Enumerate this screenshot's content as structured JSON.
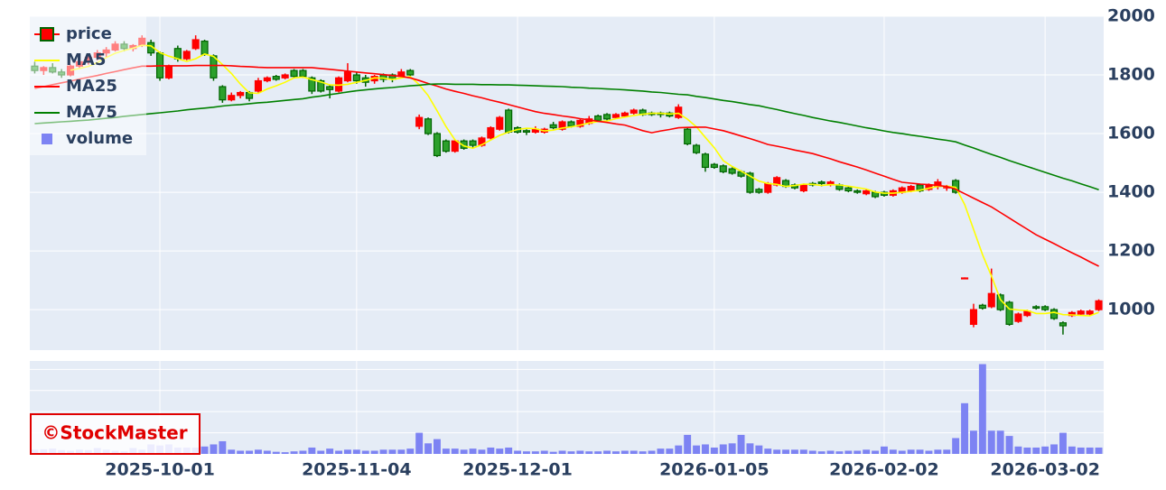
{
  "chart_data": {
    "type": "candlestick",
    "categories": [
      "2025-09-09",
      "2025-09-10",
      "2025-09-11",
      "2025-09-12",
      "2025-09-16",
      "2025-09-17",
      "2025-09-18",
      "2025-09-19",
      "2025-09-22",
      "2025-09-24",
      "2025-09-25",
      "2025-09-26",
      "2025-09-29",
      "2025-09-30",
      "2025-10-01",
      "2025-10-02",
      "2025-10-03",
      "2025-10-06",
      "2025-10-07",
      "2025-10-08",
      "2025-10-09",
      "2025-10-10",
      "2025-10-14",
      "2025-10-15",
      "2025-10-16",
      "2025-10-17",
      "2025-10-20",
      "2025-10-21",
      "2025-10-22",
      "2025-10-23",
      "2025-10-24",
      "2025-10-27",
      "2025-10-28",
      "2025-10-29",
      "2025-10-30",
      "2025-10-31",
      "2025-11-04",
      "2025-11-05",
      "2025-11-06",
      "2025-11-07",
      "2025-11-10",
      "2025-11-11",
      "2025-11-12",
      "2025-11-13",
      "2025-11-14",
      "2025-11-17",
      "2025-11-18",
      "2025-11-19",
      "2025-11-20",
      "2025-11-21",
      "2025-11-25",
      "2025-11-26",
      "2025-11-27",
      "2025-11-28",
      "2025-12-01",
      "2025-12-02",
      "2025-12-03",
      "2025-12-04",
      "2025-12-05",
      "2025-12-08",
      "2025-12-09",
      "2025-12-10",
      "2025-12-11",
      "2025-12-12",
      "2025-12-15",
      "2025-12-16",
      "2025-12-17",
      "2025-12-18",
      "2025-12-19",
      "2025-12-22",
      "2025-12-23",
      "2025-12-24",
      "2025-12-25",
      "2025-12-26",
      "2025-12-29",
      "2025-12-30",
      "2026-01-05",
      "2026-01-06",
      "2026-01-07",
      "2026-01-08",
      "2026-01-09",
      "2026-01-13",
      "2026-01-14",
      "2026-01-15",
      "2026-01-16",
      "2026-01-19",
      "2026-01-20",
      "2026-01-21",
      "2026-01-22",
      "2026-01-23",
      "2026-01-26",
      "2026-01-27",
      "2026-01-28",
      "2026-01-29",
      "2026-01-30",
      "2026-02-02",
      "2026-02-03",
      "2026-02-04",
      "2026-02-05",
      "2026-02-06",
      "2026-02-09",
      "2026-02-10",
      "2026-02-12",
      "2026-02-13",
      "2026-02-16",
      "2026-02-17",
      "2026-02-18",
      "2026-02-19",
      "2026-02-20",
      "2026-02-24",
      "2026-02-25",
      "2026-02-26",
      "2026-02-27",
      "2026-03-02",
      "2026-03-03",
      "2026-03-04",
      "2026-03-05",
      "2026-03-06",
      "2026-03-09",
      "2026-03-10"
    ],
    "price": {
      "name": "price",
      "increasing_color": "#ff0000",
      "decreasing_color": "#2ca02c",
      "decreasing_line": "#006400",
      "open": [
        1830,
        1815,
        1825,
        1810,
        1800,
        1830,
        1845,
        1860,
        1875,
        1885,
        1905,
        1890,
        1900,
        1910,
        1875,
        1790,
        1890,
        1855,
        1890,
        1915,
        1865,
        1760,
        1715,
        1730,
        1740,
        1745,
        1780,
        1795,
        1790,
        1815,
        1815,
        1790,
        1780,
        1760,
        1745,
        1780,
        1800,
        1790,
        1780,
        1800,
        1800,
        1795,
        1815,
        1625,
        1650,
        1600,
        1575,
        1540,
        1575,
        1575,
        1560,
        1585,
        1615,
        1680,
        1620,
        1610,
        1605,
        1605,
        1630,
        1615,
        1640,
        1625,
        1635,
        1660,
        1665,
        1655,
        1660,
        1670,
        1680,
        1670,
        1670,
        1670,
        1655,
        1615,
        1560,
        1530,
        1495,
        1490,
        1480,
        1470,
        1465,
        1410,
        1400,
        1425,
        1440,
        1425,
        1405,
        1430,
        1435,
        1425,
        1425,
        1415,
        1405,
        1395,
        1400,
        1400,
        1390,
        1400,
        1405,
        1425,
        1410,
        1420,
        1415,
        1440,
        1107,
        950,
        1015,
        1010,
        1050,
        1025,
        960,
        980,
        1010,
        1010,
        1000,
        955,
        980,
        985,
        985,
        1000
      ],
      "high": [
        1845,
        1830,
        1840,
        1820,
        1835,
        1850,
        1870,
        1885,
        1895,
        1915,
        1915,
        1905,
        1935,
        1920,
        1880,
        1835,
        1900,
        1885,
        1935,
        1920,
        1870,
        1765,
        1740,
        1745,
        1745,
        1790,
        1795,
        1800,
        1805,
        1820,
        1820,
        1795,
        1785,
        1765,
        1795,
        1840,
        1810,
        1800,
        1800,
        1805,
        1805,
        1820,
        1820,
        1665,
        1655,
        1605,
        1580,
        1580,
        1580,
        1580,
        1590,
        1625,
        1660,
        1685,
        1625,
        1615,
        1625,
        1620,
        1640,
        1645,
        1645,
        1650,
        1660,
        1665,
        1670,
        1670,
        1675,
        1685,
        1685,
        1675,
        1675,
        1675,
        1700,
        1620,
        1565,
        1535,
        1500,
        1495,
        1485,
        1475,
        1470,
        1415,
        1435,
        1455,
        1445,
        1430,
        1430,
        1435,
        1440,
        1440,
        1430,
        1420,
        1410,
        1410,
        1405,
        1405,
        1410,
        1420,
        1425,
        1430,
        1430,
        1445,
        1425,
        1445,
        1110,
        1020,
        1020,
        1140,
        1055,
        1030,
        990,
        1000,
        1015,
        1015,
        1005,
        960,
        995,
        1000,
        1000,
        1035
      ],
      "low": [
        1805,
        1800,
        1805,
        1790,
        1795,
        1820,
        1835,
        1850,
        1860,
        1880,
        1880,
        1880,
        1895,
        1865,
        1780,
        1785,
        1845,
        1850,
        1885,
        1865,
        1780,
        1705,
        1710,
        1720,
        1710,
        1740,
        1775,
        1780,
        1785,
        1790,
        1790,
        1735,
        1740,
        1720,
        1740,
        1775,
        1770,
        1760,
        1770,
        1775,
        1775,
        1790,
        1790,
        1615,
        1595,
        1520,
        1535,
        1535,
        1545,
        1550,
        1555,
        1580,
        1610,
        1600,
        1600,
        1595,
        1600,
        1600,
        1615,
        1610,
        1620,
        1620,
        1630,
        1640,
        1645,
        1650,
        1655,
        1665,
        1660,
        1660,
        1655,
        1655,
        1650,
        1560,
        1530,
        1470,
        1480,
        1465,
        1460,
        1450,
        1395,
        1395,
        1395,
        1420,
        1415,
        1410,
        1400,
        1420,
        1420,
        1420,
        1405,
        1400,
        1395,
        1390,
        1380,
        1385,
        1385,
        1395,
        1400,
        1400,
        1405,
        1410,
        1405,
        1395,
        1105,
        940,
        1000,
        1005,
        995,
        945,
        955,
        975,
        1000,
        995,
        965,
        915,
        975,
        980,
        980,
        995
      ],
      "close": [
        1815,
        1825,
        1810,
        1800,
        1830,
        1845,
        1860,
        1875,
        1885,
        1905,
        1890,
        1900,
        1925,
        1875,
        1790,
        1830,
        1855,
        1880,
        1920,
        1870,
        1790,
        1715,
        1730,
        1740,
        1720,
        1780,
        1790,
        1785,
        1800,
        1795,
        1795,
        1745,
        1745,
        1750,
        1790,
        1810,
        1780,
        1775,
        1795,
        1785,
        1785,
        1810,
        1800,
        1655,
        1600,
        1525,
        1540,
        1575,
        1550,
        1560,
        1585,
        1620,
        1655,
        1605,
        1605,
        1605,
        1615,
        1615,
        1620,
        1640,
        1625,
        1645,
        1650,
        1645,
        1650,
        1665,
        1670,
        1680,
        1665,
        1665,
        1665,
        1660,
        1690,
        1565,
        1535,
        1485,
        1485,
        1470,
        1465,
        1455,
        1400,
        1400,
        1430,
        1450,
        1420,
        1415,
        1425,
        1425,
        1430,
        1435,
        1410,
        1405,
        1400,
        1405,
        1385,
        1390,
        1405,
        1415,
        1420,
        1405,
        1425,
        1435,
        1420,
        1400,
        1108,
        1000,
        1005,
        1055,
        1000,
        950,
        985,
        995,
        1005,
        1000,
        970,
        945,
        990,
        995,
        995,
        1030
      ]
    },
    "series": [
      {
        "name": "MA5",
        "color": "#ffff00",
        "values": [
          null,
          null,
          null,
          null,
          1816,
          1822,
          1829,
          1842,
          1859,
          1874,
          1883,
          1891,
          1901,
          1899,
          1876,
          1864,
          1855,
          1846,
          1855,
          1871,
          1863,
          1835,
          1805,
          1769,
          1739,
          1737,
          1752,
          1763,
          1775,
          1790,
          1793,
          1784,
          1776,
          1766,
          1765,
          1768,
          1775,
          1781,
          1790,
          1789,
          1784,
          1790,
          1795,
          1767,
          1730,
          1678,
          1624,
          1579,
          1558,
          1550,
          1562,
          1578,
          1594,
          1605,
          1614,
          1618,
          1617,
          1609,
          1612,
          1619,
          1623,
          1629,
          1636,
          1641,
          1643,
          1651,
          1656,
          1662,
          1666,
          1669,
          1669,
          1667,
          1669,
          1649,
          1623,
          1587,
          1552,
          1508,
          1488,
          1472,
          1455,
          1438,
          1430,
          1427,
          1420,
          1423,
          1428,
          1427,
          1423,
          1426,
          1425,
          1421,
          1416,
          1411,
          1401,
          1397,
          1397,
          1400,
          1403,
          1407,
          1414,
          1420,
          1421,
          1417,
          1358,
          1273,
          1187,
          1114,
          1034,
          1002,
          999,
          997,
          987,
          987,
          991,
          983,
          982,
          980,
          979,
          991
        ]
      },
      {
        "name": "MA25",
        "color": "#ff0000",
        "values": [
          1754,
          1760,
          1767,
          1773,
          1779,
          1786,
          1792,
          1798,
          1805,
          1811,
          1818,
          1824,
          1830,
          1830,
          1831,
          1831,
          1831,
          1831,
          1832,
          1832,
          1832,
          1832,
          1831,
          1829,
          1828,
          1826,
          1825,
          1825,
          1825,
          1825,
          1825,
          1825,
          1822,
          1819,
          1816,
          1813,
          1810,
          1807,
          1804,
          1801,
          1798,
          1795,
          1790,
          1781,
          1771,
          1762,
          1752,
          1744,
          1737,
          1729,
          1722,
          1714,
          1707,
          1699,
          1691,
          1683,
          1675,
          1669,
          1665,
          1660,
          1656,
          1651,
          1647,
          1642,
          1638,
          1633,
          1629,
          1620,
          1610,
          1603,
          1609,
          1614,
          1620,
          1621,
          1622,
          1622,
          1616,
          1610,
          1601,
          1592,
          1583,
          1573,
          1563,
          1557,
          1551,
          1544,
          1538,
          1532,
          1523,
          1514,
          1504,
          1495,
          1486,
          1476,
          1465,
          1455,
          1444,
          1434,
          1431,
          1428,
          1426,
          1423,
          1420,
          1410,
          1395,
          1380,
          1365,
          1350,
          1331,
          1312,
          1293,
          1274,
          1255,
          1240,
          1225,
          1209,
          1194,
          1179,
          1163,
          1148
        ]
      },
      {
        "name": "MA75",
        "color": "#008000",
        "values": [
          1634,
          1636,
          1638,
          1640,
          1642,
          1644,
          1646,
          1649,
          1652,
          1655,
          1659,
          1662,
          1665,
          1668,
          1671,
          1674,
          1677,
          1681,
          1684,
          1687,
          1690,
          1694,
          1697,
          1699,
          1702,
          1705,
          1707,
          1710,
          1713,
          1716,
          1719,
          1724,
          1728,
          1733,
          1737,
          1742,
          1746,
          1749,
          1752,
          1755,
          1757,
          1760,
          1763,
          1765,
          1768,
          1769,
          1769,
          1768,
          1768,
          1768,
          1767,
          1767,
          1766,
          1766,
          1765,
          1764,
          1763,
          1762,
          1761,
          1760,
          1758,
          1757,
          1755,
          1754,
          1752,
          1751,
          1749,
          1747,
          1745,
          1742,
          1740,
          1737,
          1734,
          1732,
          1727,
          1723,
          1718,
          1713,
          1709,
          1704,
          1699,
          1695,
          1688,
          1682,
          1675,
          1668,
          1662,
          1655,
          1649,
          1643,
          1638,
          1632,
          1626,
          1620,
          1615,
          1609,
          1604,
          1600,
          1595,
          1591,
          1586,
          1581,
          1577,
          1572,
          1561,
          1551,
          1540,
          1529,
          1519,
          1508,
          1498,
          1488,
          1478,
          1468,
          1458,
          1448,
          1439,
          1429,
          1419,
          1409
        ]
      },
      {
        "name": "volume",
        "color": "#7d83f3",
        "axis": "y2",
        "values": [
          0.2,
          0.22,
          0.25,
          0.18,
          0.15,
          0.2,
          0.18,
          0.28,
          0.2,
          0.15,
          0.12,
          0.28,
          0.2,
          0.45,
          0.4,
          0.45,
          0.3,
          0.3,
          0.3,
          0.35,
          0.45,
          0.6,
          0.2,
          0.15,
          0.15,
          0.2,
          0.15,
          0.1,
          0.08,
          0.12,
          0.15,
          0.3,
          0.15,
          0.25,
          0.15,
          0.2,
          0.2,
          0.15,
          0.15,
          0.2,
          0.2,
          0.2,
          0.25,
          1.0,
          0.5,
          0.7,
          0.25,
          0.25,
          0.2,
          0.25,
          0.2,
          0.3,
          0.25,
          0.3,
          0.15,
          0.12,
          0.12,
          0.15,
          0.1,
          0.15,
          0.12,
          0.15,
          0.12,
          0.12,
          0.15,
          0.12,
          0.15,
          0.15,
          0.12,
          0.15,
          0.25,
          0.25,
          0.4,
          0.9,
          0.4,
          0.45,
          0.3,
          0.45,
          0.5,
          0.9,
          0.5,
          0.4,
          0.25,
          0.2,
          0.2,
          0.2,
          0.2,
          0.15,
          0.12,
          0.15,
          0.12,
          0.15,
          0.15,
          0.2,
          0.15,
          0.35,
          0.2,
          0.15,
          0.2,
          0.2,
          0.15,
          0.2,
          0.2,
          0.75,
          2.4,
          1.1,
          4.25,
          1.1,
          1.1,
          0.85,
          0.35,
          0.3,
          0.3,
          0.35,
          0.45,
          1.0,
          0.35,
          0.3,
          0.3,
          0.3
        ]
      }
    ],
    "ylim": [
      862,
      2000
    ],
    "yticks": [
      1000,
      1200,
      1400,
      1600,
      1800,
      2000
    ],
    "y2lim": [
      0,
      4.4
    ],
    "y2ticks": [
      1,
      2,
      3,
      4
    ],
    "xticks": [
      "2025-10-01",
      "2025-11-04",
      "2025-12-01",
      "2026-01-05",
      "2026-02-02",
      "2026-03-02"
    ],
    "grid": true,
    "legend": "upper left",
    "watermark": "©StockMaster"
  }
}
